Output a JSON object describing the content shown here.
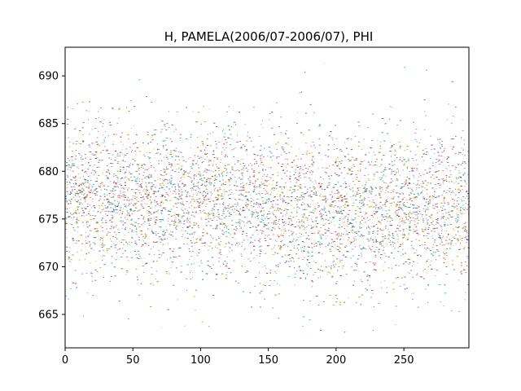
{
  "chart_data": {
    "type": "scatter",
    "title": "H, PAMELA(2006/07-2006/07), PHI",
    "xlabel": "",
    "ylabel": "",
    "xlim": [
      0,
      298
    ],
    "ylim": [
      661.5,
      693
    ],
    "xticks": [
      0,
      50,
      100,
      150,
      200,
      250
    ],
    "yticks": [
      665,
      670,
      675,
      680,
      685,
      690
    ],
    "grid": false,
    "legend": "none",
    "marker": "tiny dash",
    "density_profile": {
      "x": [
        0,
        25,
        50,
        75,
        100,
        125,
        150,
        175,
        200,
        225,
        250,
        275,
        298
      ],
      "center": [
        677.0,
        677.2,
        677.1,
        676.9,
        677.0,
        676.8,
        676.5,
        676.2,
        675.8,
        675.6,
        676.0,
        676.3,
        676.5
      ],
      "spread": [
        4.0,
        4.1,
        4.0,
        3.9,
        3.9,
        3.8,
        3.9,
        4.0,
        4.1,
        4.0,
        3.9,
        3.9,
        4.0
      ],
      "y_min_observed": 663.0,
      "y_max_observed": 691.5
    },
    "palette": [
      "#1f77b4",
      "#ff7f0e",
      "#2ca02c",
      "#d62728",
      "#9467bd",
      "#8c564b",
      "#e377c2",
      "#7f7f7f",
      "#bcbd22",
      "#17becf"
    ]
  }
}
